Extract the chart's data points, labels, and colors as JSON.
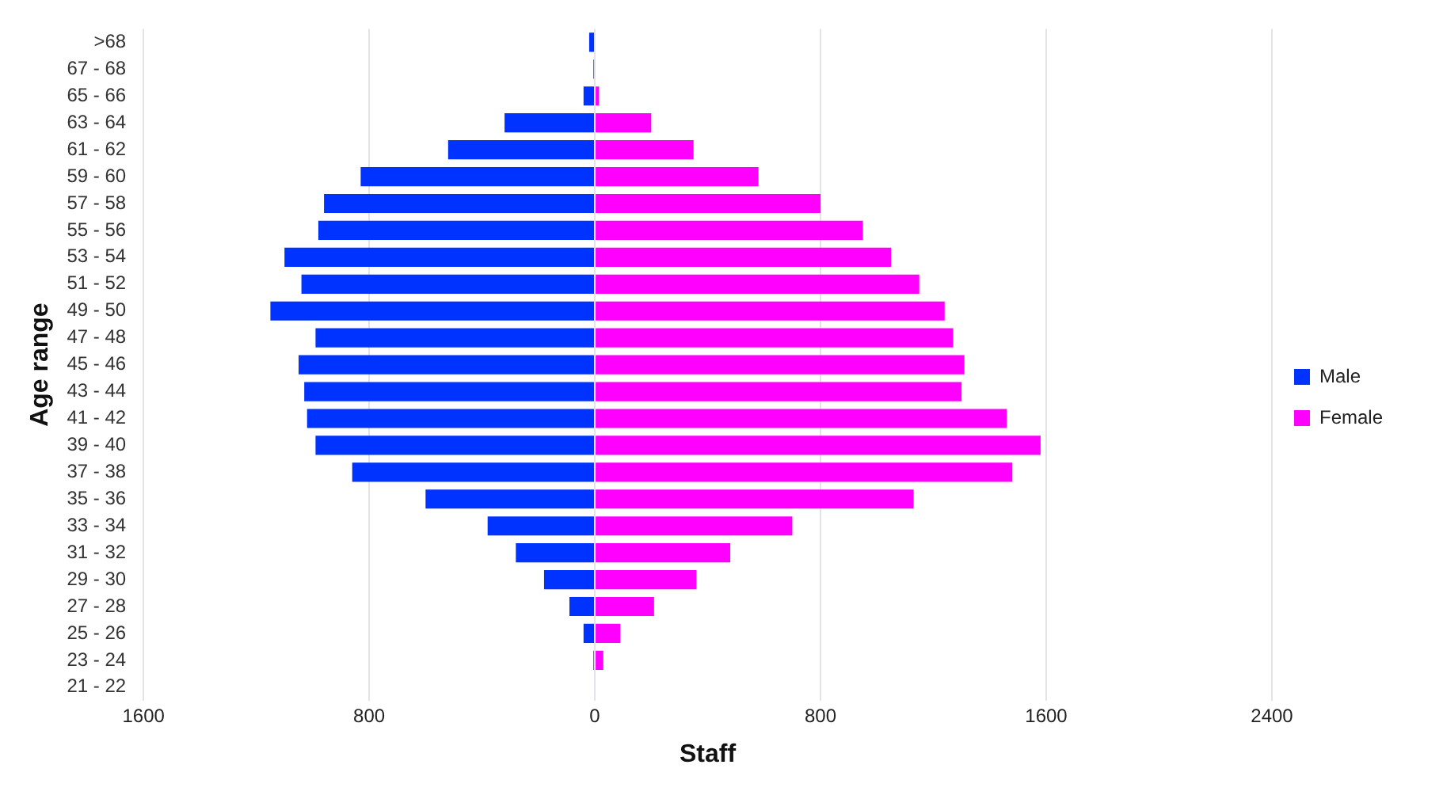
{
  "chart_data": {
    "type": "bar",
    "orientation": "horizontal",
    "stacked": true,
    "xlabel": "Staff",
    "ylabel": "Age range",
    "categories": [
      ">68",
      "67 - 68",
      "65 - 66",
      "63 - 64",
      "61 - 62",
      "59 - 60",
      "57 - 58",
      "55 - 56",
      "53 - 54",
      "51 - 52",
      "49 - 50",
      "47 - 48",
      "45 - 46",
      "43 - 44",
      "41 - 42",
      "39 - 40",
      "37 - 38",
      "35 - 36",
      "33 - 34",
      "31 - 32",
      "29 - 30",
      "27 - 28",
      "25 - 26",
      "23 - 24",
      "21 - 22"
    ],
    "series": [
      {
        "name": "Male",
        "color": "#0033ff",
        "values": [
          -20,
          -5,
          -40,
          -320,
          -520,
          -830,
          -960,
          -980,
          -1100,
          -1040,
          -1150,
          -990,
          -1050,
          -1030,
          -1020,
          -990,
          -860,
          -600,
          -380,
          -280,
          -180,
          -90,
          -40,
          -5,
          null
        ]
      },
      {
        "name": "Female",
        "color": "#ff00ff",
        "values": [
          0,
          0,
          15,
          200,
          350,
          580,
          800,
          950,
          1050,
          1150,
          1240,
          1270,
          1310,
          1300,
          1460,
          1580,
          1480,
          1130,
          700,
          480,
          360,
          210,
          90,
          30,
          null
        ]
      }
    ],
    "xlim": [
      -1600,
      2400
    ],
    "xticks": [
      {
        "value": -1600,
        "label": "1600"
      },
      {
        "value": -800,
        "label": "800"
      },
      0,
      800,
      1600,
      2400
    ],
    "grid": "x",
    "legend": "right"
  }
}
